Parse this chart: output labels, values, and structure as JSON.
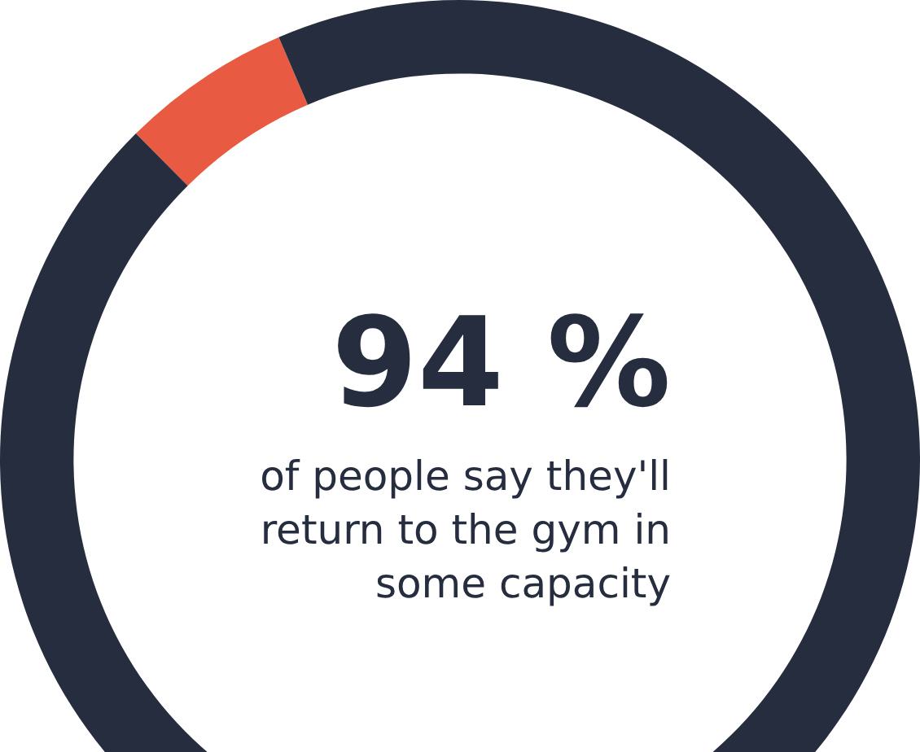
{
  "chart_data": {
    "type": "donut",
    "title": "94 %",
    "subtitle": "of people say they'll return to the gym in some capacity",
    "categories": [
      null,
      null
    ],
    "values": [
      6,
      94
    ],
    "colors": [
      "#e85a41",
      "#262d3f"
    ],
    "legend": false
  }
}
